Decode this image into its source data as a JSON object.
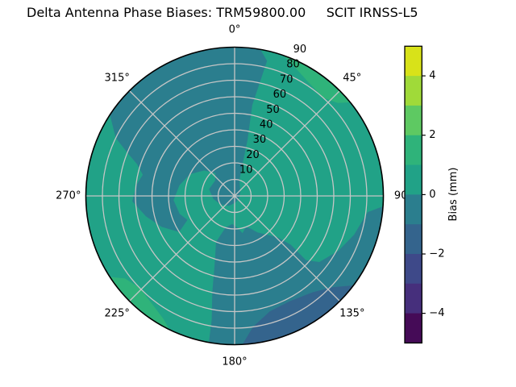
{
  "title": "Delta Antenna Phase Biases: TRM59800.00     SCIT IRNSS-L5",
  "chart_data": {
    "type": "polar_contour_filled",
    "title": "Delta Antenna Phase Biases: TRM59800.00     SCIT IRNSS-L5",
    "antenna": "TRM59800.00",
    "dome_signal": "SCIT IRNSS-L5",
    "rmax": 90,
    "grid": true,
    "grid_color": "#c6c6c6",
    "outline_color": "#000000",
    "angular_ticks": [
      {
        "angle": 0,
        "label": "0°"
      },
      {
        "angle": 45,
        "label": "45°"
      },
      {
        "angle": 90,
        "label": "90"
      },
      {
        "angle": 135,
        "label": "135°"
      },
      {
        "angle": 180,
        "label": "180°"
      },
      {
        "angle": 225,
        "label": "225°"
      },
      {
        "angle": 270,
        "label": "270°"
      },
      {
        "angle": 315,
        "label": "315°"
      }
    ],
    "radial_ticks": [
      {
        "value": 10,
        "label": "10"
      },
      {
        "value": 20,
        "label": "20"
      },
      {
        "value": 30,
        "label": "30"
      },
      {
        "value": 40,
        "label": "40"
      },
      {
        "value": 50,
        "label": "50"
      },
      {
        "value": 60,
        "label": "60"
      },
      {
        "value": 70,
        "label": "70"
      },
      {
        "value": 80,
        "label": "80"
      },
      {
        "value": 90,
        "label": "90"
      }
    ],
    "radial_label_angle_deg": 24,
    "radial_label_offset": 7,
    "base_band": {
      "value_range": [
        0,
        1
      ],
      "color": "#21a287"
    },
    "regions": [
      {
        "name": "bias-region-neg1-0-northwest",
        "value_range": [
          -1,
          0
        ],
        "color": "#2b7e8e",
        "points": [
          [
            303,
            90
          ],
          [
            370,
            90
          ],
          [
            13.5,
            84
          ],
          [
            11,
            56
          ],
          [
            13,
            35
          ],
          [
            14,
            20
          ],
          [
            17,
            10
          ],
          [
            60,
            4
          ],
          [
            120,
            3
          ],
          [
            170,
            4
          ],
          [
            210,
            7
          ],
          [
            240,
            10
          ],
          [
            262,
            13
          ],
          [
            285,
            16
          ],
          [
            308,
            15
          ],
          [
            320,
            18
          ],
          [
            310,
            24
          ],
          [
            296,
            30
          ],
          [
            281,
            34
          ],
          [
            266,
            37
          ],
          [
            252,
            35
          ],
          [
            243,
            32
          ],
          [
            237,
            40
          ],
          [
            247,
            48
          ],
          [
            257,
            55
          ],
          [
            267,
            62
          ],
          [
            276,
            60
          ],
          [
            283,
            57
          ],
          [
            288,
            62
          ],
          [
            292,
            70
          ],
          [
            296,
            80
          ]
        ]
      },
      {
        "name": "bias-region-neg1-0-southeast",
        "value_range": [
          -1,
          0
        ],
        "color": "#2b7e8e",
        "points": [
          [
            196,
            20
          ],
          [
            185,
            17
          ],
          [
            176,
            19
          ],
          [
            168,
            23
          ],
          [
            160,
            20
          ],
          [
            154,
            22
          ],
          [
            148,
            26
          ],
          [
            141,
            30
          ],
          [
            134,
            36
          ],
          [
            131,
            45
          ],
          [
            132,
            58
          ],
          [
            128,
            65
          ],
          [
            118,
            71
          ],
          [
            108,
            76
          ],
          [
            97,
            81
          ],
          [
            94,
            90
          ],
          [
            190,
            90
          ],
          [
            190.5,
            76
          ],
          [
            193,
            60
          ],
          [
            196,
            44
          ],
          [
            202,
            30
          ]
        ]
      },
      {
        "name": "bias-region-neg2-neg1-south-edge",
        "value_range": [
          -2,
          -1
        ],
        "color": "#34648d",
        "points": [
          [
            127,
            90
          ],
          [
            177,
            90
          ],
          [
            172,
            80
          ],
          [
            163,
            73
          ],
          [
            152,
            72
          ],
          [
            141,
            75
          ],
          [
            133,
            81
          ]
        ]
      },
      {
        "name": "bias-region-1-2-northeast-edge",
        "value_range": [
          1,
          2
        ],
        "color": "#2fb37a",
        "points": [
          [
            19,
            90
          ],
          [
            51,
            90
          ],
          [
            48,
            84
          ],
          [
            42,
            80
          ],
          [
            33,
            82
          ],
          [
            25,
            86
          ]
        ]
      },
      {
        "name": "bias-region-1-2-southwest-edge",
        "value_range": [
          1,
          2
        ],
        "color": "#2fb37a",
        "points": [
          [
            206,
            90
          ],
          [
            237,
            90
          ],
          [
            233,
            83
          ],
          [
            226,
            80
          ],
          [
            218,
            82
          ],
          [
            210,
            86
          ]
        ]
      }
    ],
    "colorbar": {
      "label": "Bias (mm)",
      "vmin": -5,
      "vmax": 5,
      "ticks": [
        {
          "value": 4,
          "label": "4"
        },
        {
          "value": 2,
          "label": "2"
        },
        {
          "value": 0,
          "label": "0"
        },
        {
          "value": -2,
          "label": "−2"
        },
        {
          "value": -4,
          "label": "−4"
        }
      ],
      "bands_top_to_bottom": [
        {
          "value_range": [
            4,
            5
          ],
          "color": "#d8e219"
        },
        {
          "value_range": [
            3,
            4
          ],
          "color": "#a0da39"
        },
        {
          "value_range": [
            2,
            3
          ],
          "color": "#5ec962"
        },
        {
          "value_range": [
            1,
            2
          ],
          "color": "#2fb37a"
        },
        {
          "value_range": [
            0,
            1
          ],
          "color": "#21a287"
        },
        {
          "value_range": [
            -1,
            0
          ],
          "color": "#2b7e8e"
        },
        {
          "value_range": [
            -2,
            -1
          ],
          "color": "#34648d"
        },
        {
          "value_range": [
            -3,
            -2
          ],
          "color": "#3e4989"
        },
        {
          "value_range": [
            -4,
            -3
          ],
          "color": "#462f7c"
        },
        {
          "value_range": [
            -5,
            -4
          ],
          "color": "#450b57"
        }
      ]
    }
  }
}
